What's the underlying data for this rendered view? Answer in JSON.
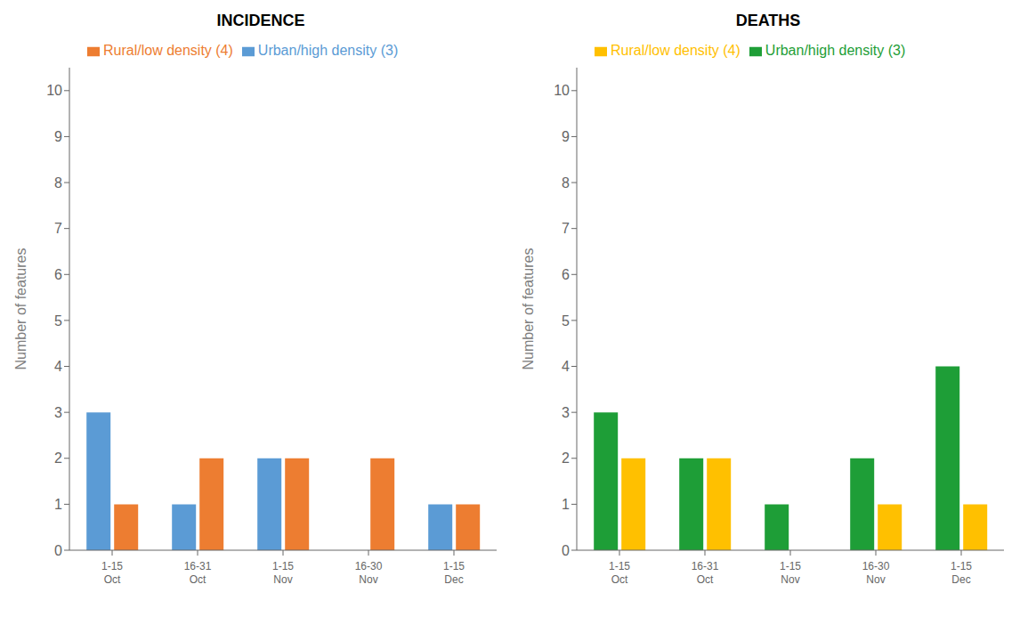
{
  "chart_data": [
    {
      "type": "bar",
      "title": "INCIDENCE",
      "categories": [
        "1-15\nOct",
        "16-31\nOct",
        "1-15\nNov",
        "16-30\nNov",
        "1-15\nDec"
      ],
      "series": [
        {
          "name": "Urban/high density (3)",
          "color": "#5B9BD5",
          "values": [
            3,
            1,
            2,
            0,
            1
          ]
        },
        {
          "name": "Rural/low density (4)",
          "color": "#ED7D31",
          "values": [
            1,
            2,
            2,
            2,
            1
          ]
        }
      ],
      "ylabel": "Number of features",
      "ylim": [
        0,
        10.5
      ],
      "yticks": [
        0,
        1,
        2,
        3,
        4,
        5,
        6,
        7,
        8,
        9,
        10
      ],
      "grid": false,
      "legend": "upper left"
    },
    {
      "type": "bar",
      "title": "DEATHS",
      "categories": [
        "1-15\nOct",
        "16-31\nOct",
        "1-15\nNov",
        "16-30\nNov",
        "1-15\nDec"
      ],
      "series": [
        {
          "name": "Urban/high density (3)",
          "color": "#1E9E37",
          "values": [
            3,
            2,
            1,
            2,
            4
          ]
        },
        {
          "name": "Rural/low density (4)",
          "color": "#FFC000",
          "values": [
            2,
            2,
            0,
            1,
            1
          ]
        }
      ],
      "ylabel": "Number of features",
      "ylim": [
        0,
        10.5
      ],
      "yticks": [
        0,
        1,
        2,
        3,
        4,
        5,
        6,
        7,
        8,
        9,
        10
      ],
      "grid": false,
      "legend": "upper left"
    }
  ]
}
